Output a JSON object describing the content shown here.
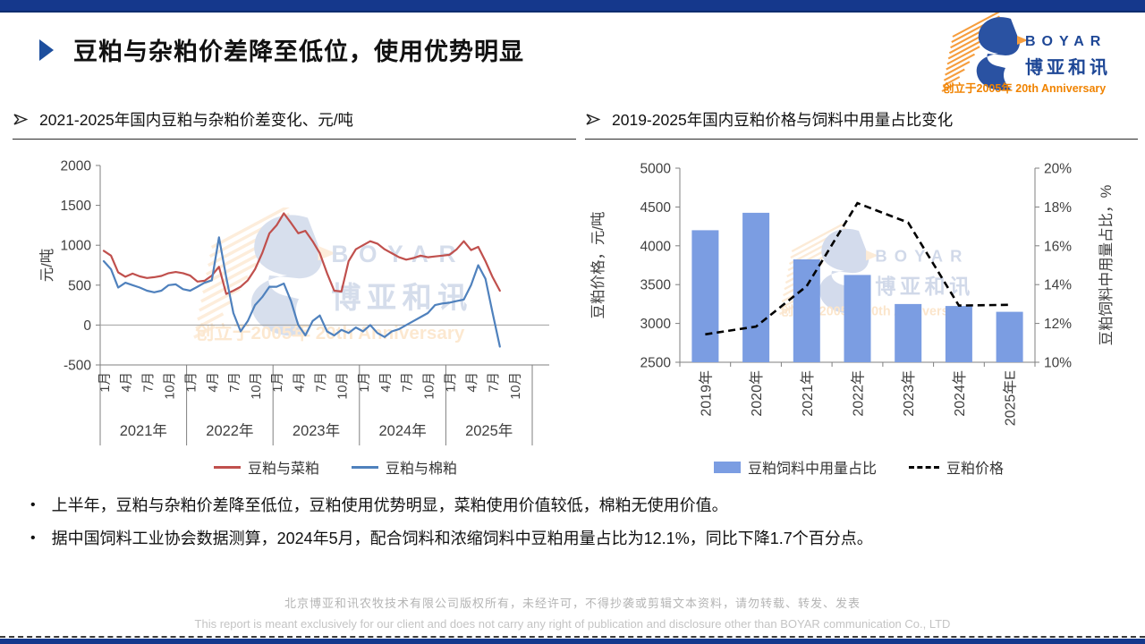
{
  "page": {
    "title": "豆粕与杂粕价差降至低位，使用优势明显",
    "logo": {
      "name": "BOYAR",
      "cn": "博亚和讯",
      "tagline": "创立于2005年 20th Anniversary"
    },
    "sections": [
      {
        "header": "2021-2025年国内豆粕与杂粕价差变化、元/吨"
      },
      {
        "header": "2019-2025年国内豆粕价格与饲料中用量占比变化"
      }
    ],
    "bullets": [
      "上半年，豆粕与杂粕价差降至低位，豆粕使用优势明显，菜粕使用价值较低，棉粕无使用价值。",
      "据中国饲料工业协会数据测算，2024年5月，配合饲料和浓缩饲料中豆粕用量占比为12.1%，同比下降1.7个百分点。"
    ],
    "footer_cn": "北京博亚和讯农牧技术有限公司版权所有，未经许可，不得抄袭或剪辑文本资料，请勿转载、转发、发表",
    "footer_en": "This report is meant exclusively for our client and does not carry any right of publication and disclosure other than BOYAR communication Co., LTD",
    "colors": {
      "navy": "#15388c",
      "red": "#c0504d",
      "blue": "#4f81bd",
      "bar_blue": "#7b9de2",
      "orange": "#f59d3d"
    }
  },
  "chart_data": [
    {
      "type": "line",
      "title": "2021-2025年国内豆粕与杂粕价差变化、元/吨",
      "ylabel": "元/吨",
      "ylim": [
        -500,
        2000
      ],
      "yticks": [
        2000,
        1500,
        1000,
        500,
        0,
        -500
      ],
      "year_labels": [
        "2021年",
        "2022年",
        "2023年",
        "2024年",
        "2025年"
      ],
      "month_ticks": [
        "1月",
        "4月",
        "7月",
        "10月"
      ],
      "month_tick_indices": [
        0,
        3,
        6,
        9
      ],
      "legend_position": "bottom",
      "grid": false,
      "series": [
        {
          "name": "豆粕与菜粕",
          "color": "#c0504d",
          "values": [
            930,
            870,
            660,
            605,
            645,
            610,
            590,
            600,
            615,
            650,
            665,
            650,
            620,
            545,
            555,
            620,
            730,
            390,
            430,
            480,
            560,
            700,
            900,
            1150,
            1250,
            1400,
            1280,
            1150,
            1180,
            1050,
            900,
            650,
            430,
            420,
            800,
            950,
            1000,
            1050,
            1020,
            950,
            900,
            850,
            820,
            840,
            870,
            850,
            860,
            870,
            880,
            950,
            1050,
            940,
            980,
            800,
            600,
            430
          ]
        },
        {
          "name": "豆粕与棉粕",
          "color": "#4f81bd",
          "values": [
            800,
            700,
            470,
            530,
            500,
            470,
            430,
            410,
            430,
            500,
            510,
            450,
            430,
            480,
            530,
            560,
            1100,
            600,
            150,
            -80,
            50,
            250,
            350,
            480,
            480,
            520,
            300,
            0,
            -130,
            50,
            120,
            -80,
            -130,
            -60,
            -100,
            -30,
            -80,
            0,
            -100,
            -150,
            -80,
            -50,
            0,
            50,
            100,
            150,
            250,
            270,
            280,
            300,
            320,
            500,
            750,
            580,
            150,
            -270
          ]
        }
      ]
    },
    {
      "type": "bar+line",
      "title": "2019-2025年国内豆粕价格与饲料中用量占比变化",
      "categories": [
        "2019年",
        "2020年",
        "2021年",
        "2022年",
        "2023年",
        "2024年",
        "2025年E"
      ],
      "bar_series": {
        "name": "豆粕饲料中用量占比",
        "axis": "right",
        "unit": "%",
        "color": "#7b9de2",
        "values": [
          16.8,
          17.7,
          15.3,
          14.5,
          13.0,
          12.9,
          12.6
        ]
      },
      "line_series": {
        "name": "豆粕价格",
        "axis": "left",
        "unit": "元/吨",
        "style": "dashed",
        "color": "#000000",
        "values": [
          2860,
          2960,
          3480,
          4550,
          4300,
          3230,
          3240
        ]
      },
      "left_axis": {
        "label": "豆粕价格，元/吨",
        "min": 2500,
        "max": 5000,
        "ticks": [
          2500,
          3000,
          3500,
          4000,
          4500,
          5000
        ]
      },
      "right_axis": {
        "label": "豆粕饲料中用量占比，%",
        "min": 10,
        "max": 20,
        "ticks": [
          "10%",
          "12%",
          "14%",
          "16%",
          "18%",
          "20%"
        ],
        "tick_values": [
          10,
          12,
          14,
          16,
          18,
          20
        ]
      },
      "legend_position": "bottom",
      "grid": false
    }
  ]
}
